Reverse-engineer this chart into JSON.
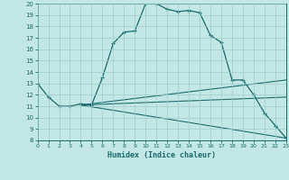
{
  "xlabel": "Humidex (Indice chaleur)",
  "xlim": [
    0,
    23
  ],
  "ylim": [
    8,
    20
  ],
  "yticks": [
    8,
    9,
    10,
    11,
    12,
    13,
    14,
    15,
    16,
    17,
    18,
    19,
    20
  ],
  "xticks": [
    0,
    1,
    2,
    3,
    4,
    5,
    6,
    7,
    8,
    9,
    10,
    11,
    12,
    13,
    14,
    15,
    16,
    17,
    18,
    19,
    20,
    21,
    22,
    23
  ],
  "bg_color": "#c2e8e5",
  "line_color": "#1a6b6b",
  "grid_color": "#9dcece",
  "lines": [
    {
      "x": [
        0,
        1,
        2,
        3,
        4,
        5,
        6,
        7,
        8,
        9,
        10,
        11,
        12,
        13,
        14,
        15,
        16,
        17,
        18,
        19,
        20,
        21,
        22,
        23
      ],
      "y": [
        13,
        11.8,
        11.0,
        11.0,
        11.2,
        11.1,
        13.5,
        16.5,
        17.5,
        17.6,
        20.0,
        20.0,
        19.5,
        19.3,
        19.4,
        19.2,
        17.2,
        16.6,
        13.3,
        13.3,
        12.0,
        10.4,
        9.3,
        8.2
      ],
      "marker": true
    },
    {
      "x": [
        4,
        23
      ],
      "y": [
        11.1,
        13.3
      ],
      "marker": false
    },
    {
      "x": [
        4,
        23
      ],
      "y": [
        11.1,
        11.8
      ],
      "marker": false
    },
    {
      "x": [
        4,
        23
      ],
      "y": [
        11.1,
        8.2
      ],
      "marker": false
    }
  ]
}
